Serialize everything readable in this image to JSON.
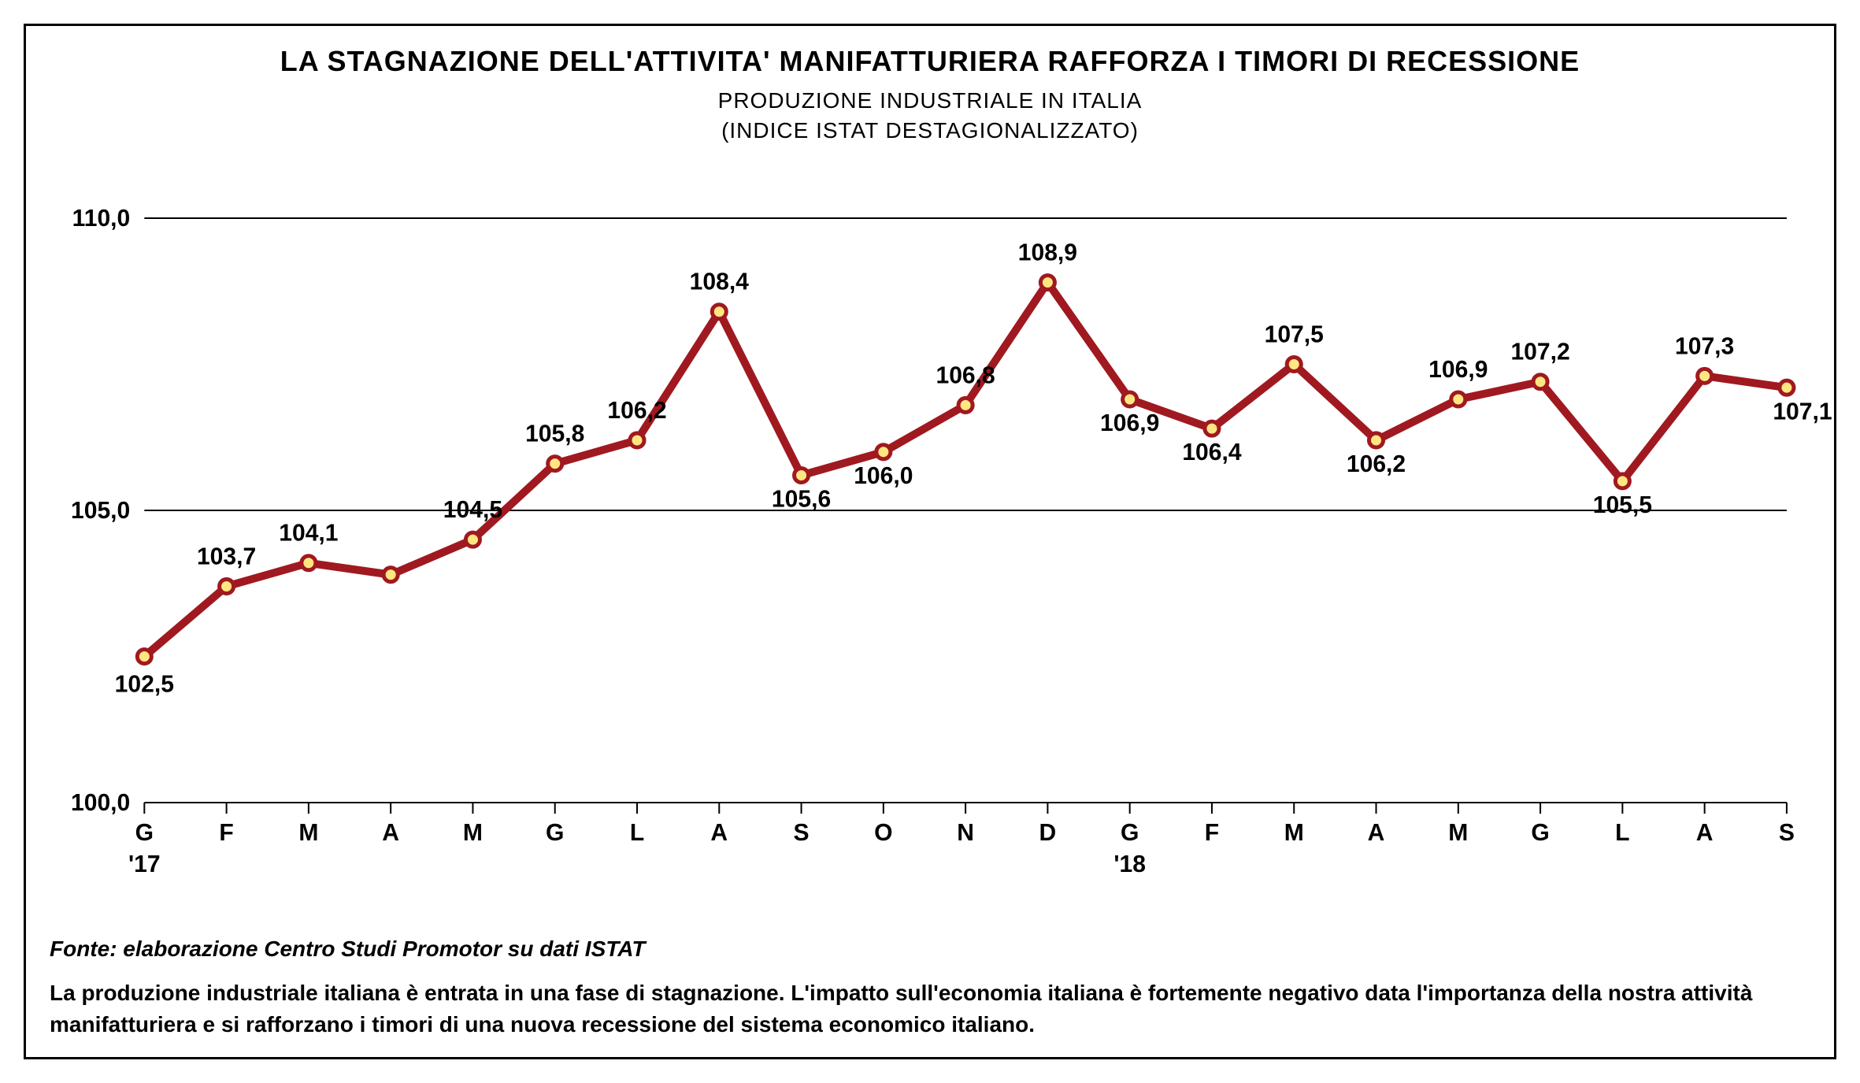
{
  "title": "LA STAGNAZIONE DELL'ATTIVITA' MANIFATTURIERA RAFFORZA I TIMORI DI RECESSIONE",
  "subtitle_line1": "PRODUZIONE INDUSTRIALE IN ITALIA",
  "subtitle_line2": "(INDICE ISTAT DESTAGIONALIZZATO)",
  "source": "Fonte: elaborazione Centro Studi Promotor su dati ISTAT",
  "note": "La produzione industriale italiana è entrata in una fase di stagnazione. L'impatto sull'economia italiana è fortemente negativo data l'importanza della nostra attività manifatturiera e si rafforzano i timori di una nuova recessione del sistema economico italiano.",
  "chart": {
    "type": "line",
    "ymin": 100.0,
    "ymax": 110.0,
    "ytick_step": 5.0,
    "ytick_labels": [
      "100,0",
      "105,0",
      "110,0"
    ],
    "x_labels": [
      "G",
      "F",
      "M",
      "A",
      "M",
      "G",
      "L",
      "A",
      "S",
      "O",
      "N",
      "D",
      "G",
      "F",
      "M",
      "A",
      "M",
      "G",
      "L",
      "A",
      "S"
    ],
    "x_year_markers": [
      {
        "index": 0,
        "label": "'17"
      },
      {
        "index": 12,
        "label": "'18"
      }
    ],
    "values": [
      102.5,
      103.7,
      104.1,
      103.9,
      104.5,
      105.8,
      106.2,
      108.4,
      105.6,
      106.0,
      106.8,
      108.9,
      106.9,
      106.4,
      107.5,
      106.2,
      106.9,
      107.2,
      105.5,
      107.3,
      107.1
    ],
    "value_labels": [
      "102,5",
      "103,7",
      "104,1",
      "",
      "104,5",
      "105,8",
      "106,2",
      "108,4",
      "105,6",
      "106,0",
      "106,8",
      "108,9",
      "106,9",
      "106,4",
      "107,5",
      "106,2",
      "106,9",
      "107,2",
      "105,5",
      "107,3",
      "107,1"
    ],
    "label_dy": [
      45,
      -28,
      -28,
      0,
      -28,
      -28,
      -28,
      -28,
      40,
      40,
      -28,
      -28,
      40,
      40,
      -28,
      40,
      -28,
      -28,
      40,
      -28,
      40
    ],
    "label_dx": [
      0,
      0,
      0,
      0,
      0,
      0,
      0,
      0,
      0,
      0,
      0,
      0,
      0,
      0,
      0,
      0,
      0,
      0,
      0,
      0,
      20
    ],
    "line_color": "#a01920",
    "line_width": 10,
    "marker_stroke": "#a01920",
    "marker_fill": "#ffe680",
    "marker_radius": 9,
    "marker_stroke_width": 5,
    "grid_color": "#000000",
    "axis_color": "#000000",
    "background": "#ffffff",
    "title_fontsize": 36,
    "subtitle_fontsize": 28,
    "axis_label_fontsize": 30,
    "value_label_fontsize": 30,
    "source_fontsize": 28,
    "note_fontsize": 28
  }
}
